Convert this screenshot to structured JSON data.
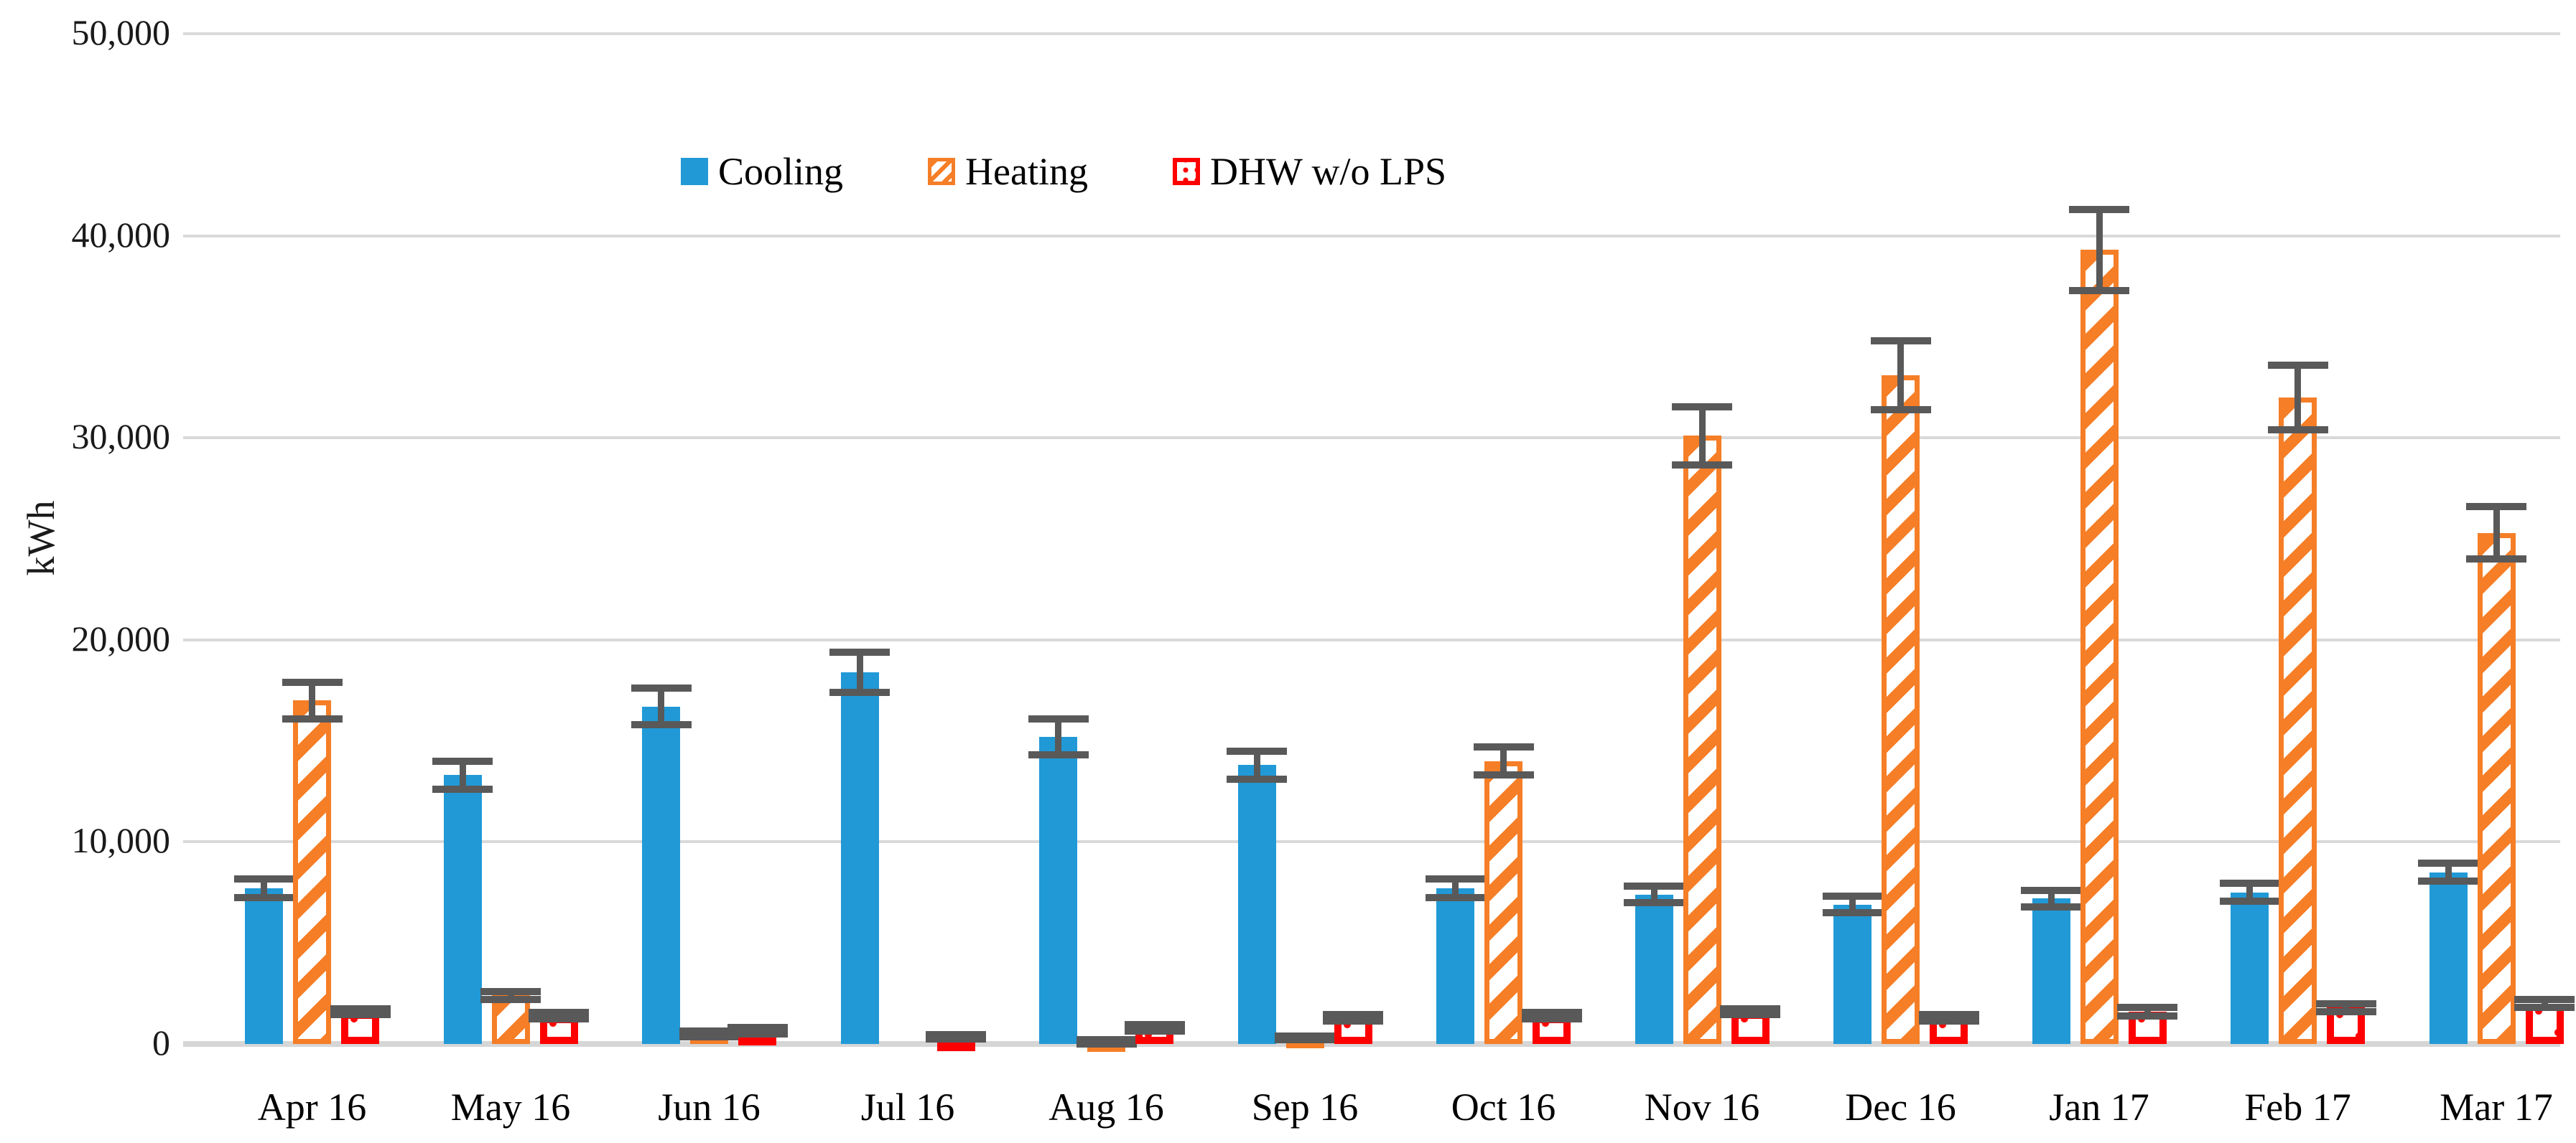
{
  "chart_data": {
    "type": "bar",
    "title": "",
    "xlabel": "",
    "ylabel": "kWh",
    "ylim": [
      0,
      50000
    ],
    "ytick_step": 10000,
    "ytick_labels": [
      "0",
      "10,000",
      "20,000",
      "30,000",
      "40,000",
      "50,000"
    ],
    "grid": true,
    "legend_position": "top-center",
    "error_bars": true,
    "categories": [
      "Apr 16",
      "May 16",
      "Jun 16",
      "Jul 16",
      "Aug 16",
      "Sep 16",
      "Oct 16",
      "Nov 16",
      "Dec 16",
      "Jan 17",
      "Feb 17",
      "Mar 17"
    ],
    "series": [
      {
        "name": "Cooling",
        "key": "cooling",
        "style": "solid",
        "color": "#2199d6",
        "values": [
          7700,
          13300,
          16700,
          18400,
          15200,
          13800,
          7700,
          7400,
          6900,
          7200,
          7500,
          8500
        ],
        "errors": [
          450,
          700,
          900,
          1000,
          900,
          700,
          450,
          400,
          400,
          400,
          450,
          450
        ]
      },
      {
        "name": "Heating",
        "key": "heating",
        "style": "diagonal-hatch-outline",
        "color": "#f57e27",
        "values": [
          17000,
          2400,
          500,
          0,
          100,
          300,
          14000,
          30100,
          33100,
          39300,
          32000,
          25300
        ],
        "errors": [
          900,
          200,
          150,
          0,
          100,
          100,
          700,
          1450,
          1700,
          2000,
          1600,
          1300
        ]
      },
      {
        "name": "DHW w/o LPS",
        "key": "dhw",
        "style": "dotted-outline",
        "color": "#fe0000",
        "values": [
          1600,
          1400,
          650,
          350,
          800,
          1300,
          1400,
          1600,
          1300,
          1600,
          1800,
          2000
        ],
        "errors": [
          150,
          150,
          150,
          100,
          150,
          150,
          150,
          150,
          150,
          200,
          200,
          200
        ]
      }
    ],
    "error_bar_color": "#595959",
    "gridline_color": "#d9d9d9"
  }
}
